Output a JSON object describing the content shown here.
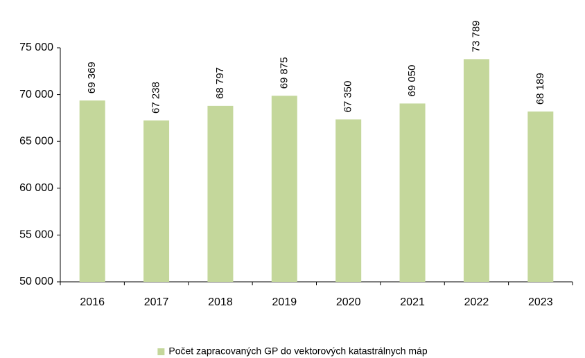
{
  "chart_data": {
    "type": "bar",
    "categories": [
      "2016",
      "2017",
      "2018",
      "2019",
      "2020",
      "2021",
      "2022",
      "2023"
    ],
    "series": [
      {
        "name": "Počet zapracovaných GP do vektorových katastrálnych máp",
        "color": "#c4d79b",
        "values": [
          69369,
          67238,
          68797,
          69875,
          67350,
          69050,
          73789,
          68189
        ],
        "value_labels": [
          "69 369",
          "67 238",
          "68 797",
          "69 875",
          "67 350",
          "69 050",
          "73 789",
          "68 189"
        ]
      }
    ],
    "ylim": [
      50000,
      75000
    ],
    "yticks": [
      {
        "value": 50000,
        "label": "50 000"
      },
      {
        "value": 55000,
        "label": "55 000"
      },
      {
        "value": 60000,
        "label": "60 000"
      },
      {
        "value": 65000,
        "label": "65 000"
      },
      {
        "value": 70000,
        "label": "70 000"
      },
      {
        "value": 75000,
        "label": "75 000"
      }
    ],
    "grid": false,
    "legend": "bottom"
  }
}
